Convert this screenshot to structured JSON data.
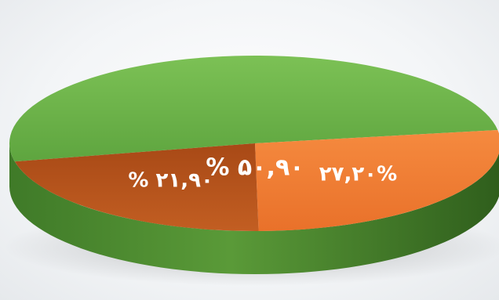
{
  "chart_data": {
    "type": "pie",
    "style": "3d",
    "labels": [
      "% ۵۰,۹۰",
      "۲۷,۲۰%",
      "% ۲۱,۹۰"
    ],
    "values": [
      50.9,
      27.2,
      21.9
    ],
    "colors": [
      "#69b04a",
      "#ee7a33",
      "#b5531d"
    ]
  }
}
